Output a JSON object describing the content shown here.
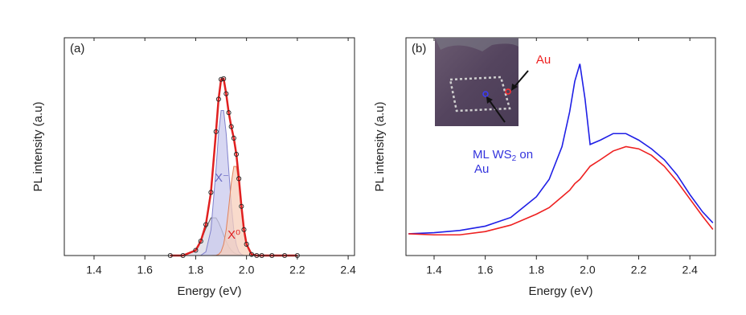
{
  "chart_data": [
    {
      "type": "line",
      "panel_label": "(a)",
      "x_label": "Energy (eV)",
      "y_label": "PL intensity (a.u)",
      "xlim": [
        1.283,
        2.425
      ],
      "ylim": [
        0,
        1
      ],
      "xticks": [
        1.4,
        1.6,
        1.8,
        {
          "value": 2,
          "label": "2.0"
        },
        2.2,
        2.4
      ],
      "annotations": [
        "X⁻",
        "X⁰"
      ],
      "x": [
        1.7,
        1.75,
        1.8,
        1.82,
        1.84,
        1.86,
        1.88,
        1.89,
        1.9,
        1.91,
        1.92,
        1.93,
        1.94,
        1.95,
        1.96,
        1.97,
        1.98,
        1.99,
        2.0,
        2.02,
        2.04,
        2.06,
        2.1,
        2.15,
        2.2
      ],
      "series": [
        {
          "color": "#555555",
          "fill": "#d9d9e4",
          "values": [
            0,
            0,
            0.024,
            0.065,
            0.125,
            0.173,
            0.173,
            0.153,
            0.125,
            0.094,
            0.065,
            0.041,
            0.024,
            0.013,
            0.007,
            0.003,
            0.001,
            0,
            0,
            0,
            0,
            0,
            0,
            0,
            0
          ]
        },
        {
          "color": "#8080cc",
          "fill": "#c9c9ee",
          "values": [
            0,
            0,
            0,
            0.001,
            0.017,
            0.117,
            0.395,
            0.56,
            0.666,
            0.666,
            0.56,
            0.395,
            0.235,
            0.117,
            0.049,
            0.017,
            0.005,
            0.001,
            0,
            0,
            0,
            0,
            0,
            0,
            0
          ]
        },
        {
          "color": "#e0805a",
          "fill": "#f7cfbb",
          "values": [
            0,
            0,
            0,
            0,
            0,
            0,
            0.001,
            0.005,
            0.018,
            0.052,
            0.118,
            0.22,
            0.333,
            0.409,
            0.409,
            0.333,
            0.22,
            0.118,
            0.052,
            0.005,
            0,
            0,
            0,
            0,
            0
          ]
        },
        {
          "color": "#e02020",
          "marker_color": "#222222",
          "values": [
            0,
            0,
            0.024,
            0.066,
            0.142,
            0.29,
            0.569,
            0.718,
            0.809,
            0.812,
            0.743,
            0.656,
            0.592,
            0.539,
            0.465,
            0.353,
            0.226,
            0.119,
            0.052,
            0.005,
            0,
            0,
            0,
            0,
            0
          ]
        }
      ]
    },
    {
      "type": "line",
      "panel_label": "(b)",
      "x_label": "Energy (eV)",
      "y_label": "PL intensity (a.u)",
      "xlim": [
        1.29,
        2.5
      ],
      "ylim": [
        0,
        1
      ],
      "xticks": [
        1.4,
        1.6,
        1.8,
        {
          "value": 2,
          "label": "2.0"
        },
        2.2,
        2.4
      ],
      "inset_labels": {
        "au": "Au",
        "ws2": [
          "ML WS",
          "2",
          " on",
          "Au"
        ]
      },
      "x": [
        1.3,
        1.4,
        1.5,
        1.6,
        1.7,
        1.8,
        1.85,
        1.9,
        1.93,
        1.95,
        1.97,
        1.99,
        2.01,
        2.05,
        2.1,
        2.15,
        2.2,
        2.25,
        2.3,
        2.35,
        2.4,
        2.45,
        2.49
      ],
      "series": [
        {
          "color": "#1f1fe6",
          "values": [
            0.1,
            0.105,
            0.115,
            0.135,
            0.175,
            0.27,
            0.35,
            0.5,
            0.66,
            0.8,
            0.88,
            0.72,
            0.51,
            0.53,
            0.56,
            0.56,
            0.53,
            0.49,
            0.44,
            0.37,
            0.28,
            0.2,
            0.15
          ]
        },
        {
          "color": "#ee2020",
          "values": [
            0.1,
            0.095,
            0.095,
            0.11,
            0.14,
            0.19,
            0.22,
            0.27,
            0.3,
            0.33,
            0.35,
            0.38,
            0.41,
            0.44,
            0.48,
            0.5,
            0.49,
            0.46,
            0.41,
            0.34,
            0.26,
            0.18,
            0.12
          ]
        }
      ]
    }
  ]
}
